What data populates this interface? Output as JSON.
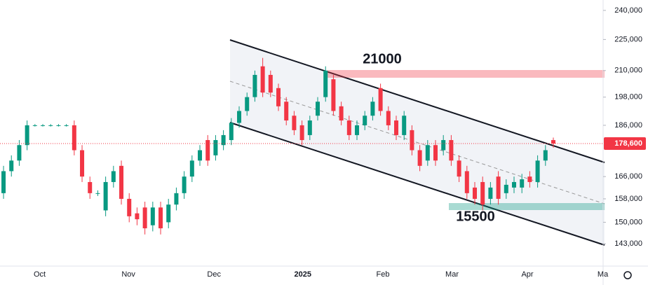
{
  "chart_data": {
    "type": "candlestick",
    "annotations": [
      "21000",
      "15500"
    ],
    "open": [
      160000,
      168000,
      172000,
      178000,
      186000,
      186000,
      186000,
      186000,
      186000,
      186000,
      176000,
      164000,
      160000,
      154000,
      164000,
      170000,
      158000,
      153000,
      155000,
      149000,
      155000,
      150000,
      156000,
      160000,
      166000,
      172000,
      180000,
      174000,
      178000,
      180000,
      187000,
      192000,
      198000,
      212000,
      208000,
      202000,
      196000,
      190000,
      186000,
      182000,
      190000,
      198000,
      206000,
      194000,
      188000,
      182000,
      186000,
      190000,
      202000,
      192000,
      188000,
      182000,
      184000,
      176000,
      172000,
      178000,
      176000,
      180000,
      172000,
      168000,
      162000,
      164000,
      158000,
      166000,
      160000,
      162000,
      162000,
      166000,
      164000,
      172000,
      180000
    ],
    "high": [
      170000,
      174000,
      180000,
      188000,
      186500,
      186500,
      186500,
      186500,
      186500,
      188000,
      178000,
      166000,
      161000,
      166000,
      170000,
      172000,
      160000,
      155000,
      157000,
      157000,
      157000,
      158000,
      162000,
      168000,
      174000,
      178000,
      182000,
      182000,
      184000,
      189000,
      194000,
      200000,
      210000,
      216000,
      210000,
      204000,
      198000,
      192000,
      188000,
      190000,
      198000,
      212000,
      208000,
      196000,
      190000,
      188000,
      192000,
      198000,
      204000,
      194000,
      190000,
      192000,
      186000,
      178000,
      180000,
      180000,
      182000,
      182000,
      174000,
      170000,
      164000,
      166000,
      164000,
      168000,
      165000,
      166000,
      167000,
      168000,
      174000,
      178000,
      181000
    ],
    "low": [
      158000,
      166000,
      170000,
      176000,
      185500,
      185500,
      185500,
      185500,
      185500,
      174000,
      164000,
      158000,
      159000,
      152000,
      162000,
      156000,
      150000,
      149000,
      146000,
      147000,
      146000,
      148000,
      154000,
      158000,
      164000,
      170000,
      170000,
      172000,
      176000,
      178000,
      185000,
      190000,
      196000,
      198000,
      198000,
      192000,
      186000,
      182000,
      178000,
      180000,
      188000,
      196000,
      190000,
      186000,
      180000,
      180000,
      184000,
      188000,
      190000,
      184000,
      180000,
      180000,
      174000,
      168000,
      170000,
      170000,
      174000,
      170000,
      164000,
      158000,
      156000,
      154000,
      156000,
      156000,
      158000,
      160000,
      160000,
      162000,
      162000,
      170000,
      177000
    ],
    "close": [
      168000,
      172000,
      178000,
      186000,
      186000,
      186000,
      186000,
      186000,
      186000,
      176000,
      166000,
      160000,
      160000,
      164000,
      168000,
      158000,
      152000,
      151000,
      148000,
      155000,
      148000,
      156000,
      160000,
      166000,
      172000,
      176000,
      172000,
      180000,
      182000,
      187000,
      192000,
      198000,
      208000,
      200000,
      200000,
      194000,
      188000,
      184000,
      180000,
      188000,
      196000,
      210000,
      192000,
      188000,
      182000,
      186000,
      190000,
      196000,
      192000,
      186000,
      182000,
      190000,
      176000,
      170000,
      178000,
      172000,
      180000,
      172000,
      166000,
      160000,
      158000,
      156000,
      162000,
      158000,
      163000,
      164000,
      165000,
      164000,
      172000,
      176000,
      178600
    ],
    "up_color": "#089981",
    "down_color": "#f23645",
    "log_scale": true,
    "ylim": [
      136100,
      245600
    ],
    "yticks": [
      {
        "value": 240000,
        "label": "240,000"
      },
      {
        "value": 225000,
        "label": "225,000"
      },
      {
        "value": 210000,
        "label": "210,000"
      },
      {
        "value": 198000,
        "label": "198,000"
      },
      {
        "value": 186000,
        "label": "186,000"
      },
      {
        "value": 166000,
        "label": "166,000"
      },
      {
        "value": 158000,
        "label": "158,000"
      },
      {
        "value": 150000,
        "label": "150,000"
      },
      {
        "value": 143000,
        "label": "143,000"
      }
    ],
    "xlim": [
      -0.45,
      76.34
    ],
    "xticks": [
      {
        "value": 4.6,
        "label": "Oct"
      },
      {
        "value": 15.9,
        "label": "Nov"
      },
      {
        "value": 26.8,
        "label": "Dec"
      },
      {
        "value": 38.1,
        "label": "2025"
      },
      {
        "value": 48.3,
        "label": "Feb"
      },
      {
        "value": 57.1,
        "label": "Mar"
      },
      {
        "value": 66.7,
        "label": "Apr"
      },
      {
        "value": 76.3,
        "label": "Ma"
      }
    ],
    "last_price": {
      "value": 178600,
      "label": "178,600"
    }
  }
}
